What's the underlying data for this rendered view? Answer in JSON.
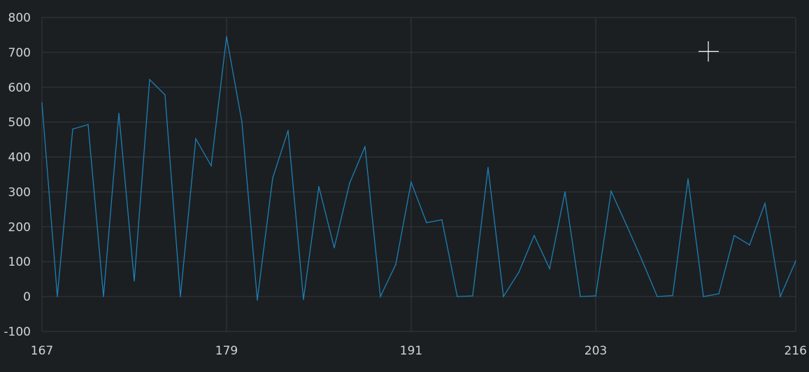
{
  "colors": {
    "background": "#1b1f22",
    "grid": "#33393e",
    "tick_text": "#d0d4d8",
    "series": "#1e7fb4"
  },
  "cursor_icon": "crosshair-cursor-icon",
  "chart_data": {
    "type": "line",
    "title": "",
    "xlabel": "",
    "ylabel": "",
    "xlim": [
      167,
      216
    ],
    "ylim": [
      -100,
      800
    ],
    "x_ticks": [
      167,
      179,
      191,
      203,
      216
    ],
    "y_ticks": [
      800,
      700,
      600,
      500,
      400,
      300,
      200,
      100,
      0,
      -100
    ],
    "grid": true,
    "legend": "none",
    "series": [
      {
        "x": [
          167,
          168,
          169,
          170,
          171,
          172,
          173,
          174,
          175,
          176,
          177,
          178,
          179,
          180,
          181,
          182,
          183,
          184,
          185,
          186,
          187,
          188,
          189,
          190,
          191,
          192,
          193,
          194,
          195,
          196,
          197,
          198,
          199,
          200,
          201,
          202,
          203,
          204,
          205,
          206,
          207,
          208,
          209,
          210,
          211,
          212,
          213,
          214,
          215,
          216
        ],
        "values": [
          555,
          0,
          480,
          493,
          0,
          525,
          45,
          622,
          578,
          0,
          452,
          375,
          745,
          500,
          -10,
          340,
          476,
          -8,
          315,
          140,
          325,
          430,
          0,
          92,
          328,
          212,
          220,
          0,
          2,
          370,
          0,
          70,
          175,
          80,
          300,
          0,
          2,
          302,
          205,
          105,
          0,
          3,
          337,
          0,
          8,
          175,
          148,
          267,
          0,
          102
        ]
      }
    ]
  }
}
